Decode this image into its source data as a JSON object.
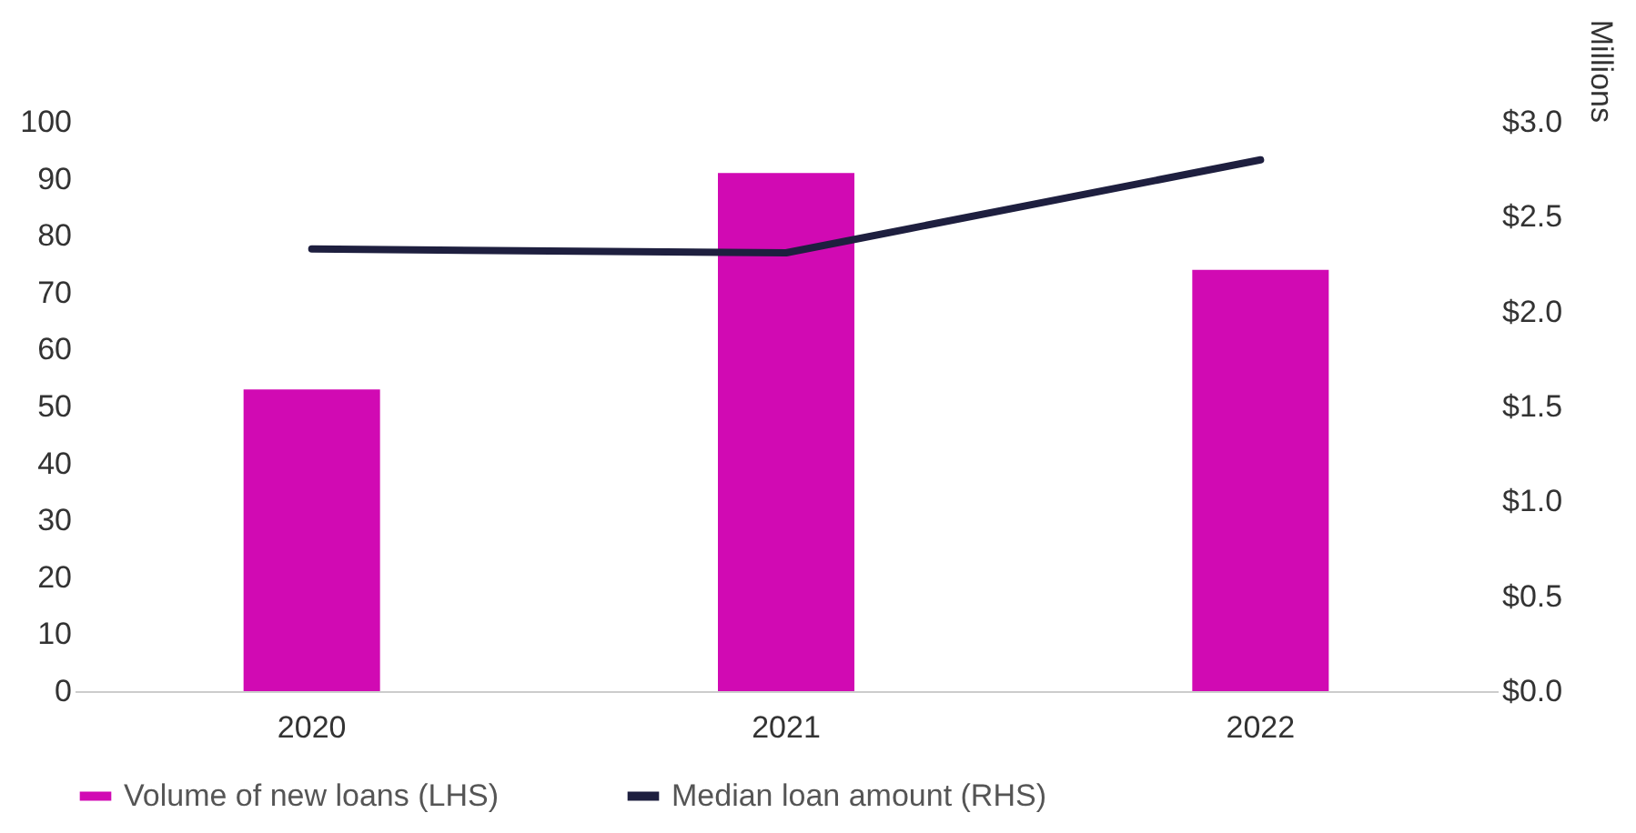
{
  "chart_data": {
    "type": "bar",
    "categories": [
      "2020",
      "2021",
      "2022"
    ],
    "series": [
      {
        "name": "Volume of new loans (LHS)",
        "color": "#d10ab3",
        "values": [
          53,
          91,
          74
        ]
      },
      {
        "name": "Median loan amount (RHS)",
        "type": "line",
        "axis": "y2",
        "color": "#1e1f3f",
        "values": [
          2.33,
          2.31,
          2.8
        ]
      }
    ],
    "ylim": [
      0,
      100
    ],
    "yticks": [
      0,
      10,
      20,
      30,
      40,
      50,
      60,
      70,
      80,
      90,
      100
    ],
    "y2lim": [
      0,
      3
    ],
    "y2ticks": [
      {
        "value": 0,
        "label": "$0.0"
      },
      {
        "value": 0.5,
        "label": "$0.5"
      },
      {
        "value": 1,
        "label": "$1.0"
      },
      {
        "value": 1.5,
        "label": "$1.5"
      },
      {
        "value": 2,
        "label": "$2.0"
      },
      {
        "value": 2.5,
        "label": "$2.5"
      },
      {
        "value": 3,
        "label": "$3.0"
      }
    ],
    "y2label": "Millions",
    "legend": "bottom",
    "line_style": "solid"
  }
}
